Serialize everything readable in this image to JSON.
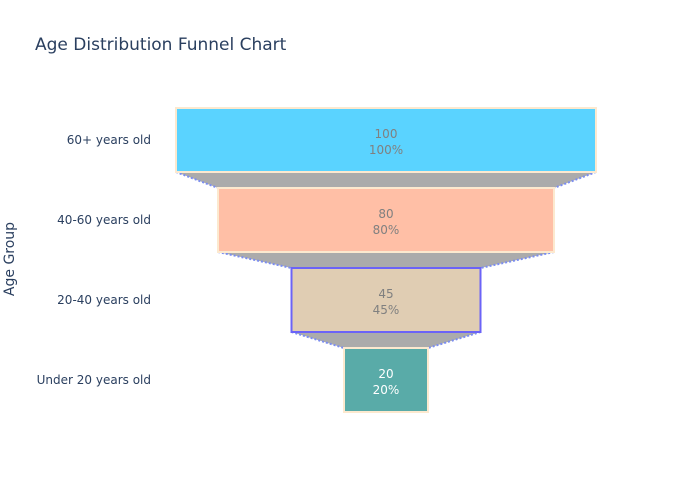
{
  "chart_data": {
    "type": "funnel",
    "title": "Age Distribution Funnel Chart",
    "xlabel": "",
    "ylabel": "Age Group",
    "categories": [
      "60+ years old",
      "40-60 years old",
      "20-40 years old",
      "Under 20 years old"
    ],
    "values": [
      100,
      80,
      45,
      20
    ],
    "percent_labels": [
      "100%",
      "80%",
      "45%",
      "20%"
    ],
    "bar_colors": [
      "#5AD3FF",
      "#FFBFA6",
      "#E0CDB3",
      "#59ABA8"
    ],
    "bar_border_colors": [
      "#FCE9CF",
      "#FCE9CF",
      "#6B63F7",
      "#FCE9CF"
    ],
    "label_colors": [
      "#808080",
      "#808080",
      "#808080",
      "#ffffff"
    ],
    "connector_fill": "#ABABAB",
    "connector_line_color": "#7B8DF0",
    "grid": false,
    "legend": "none"
  }
}
